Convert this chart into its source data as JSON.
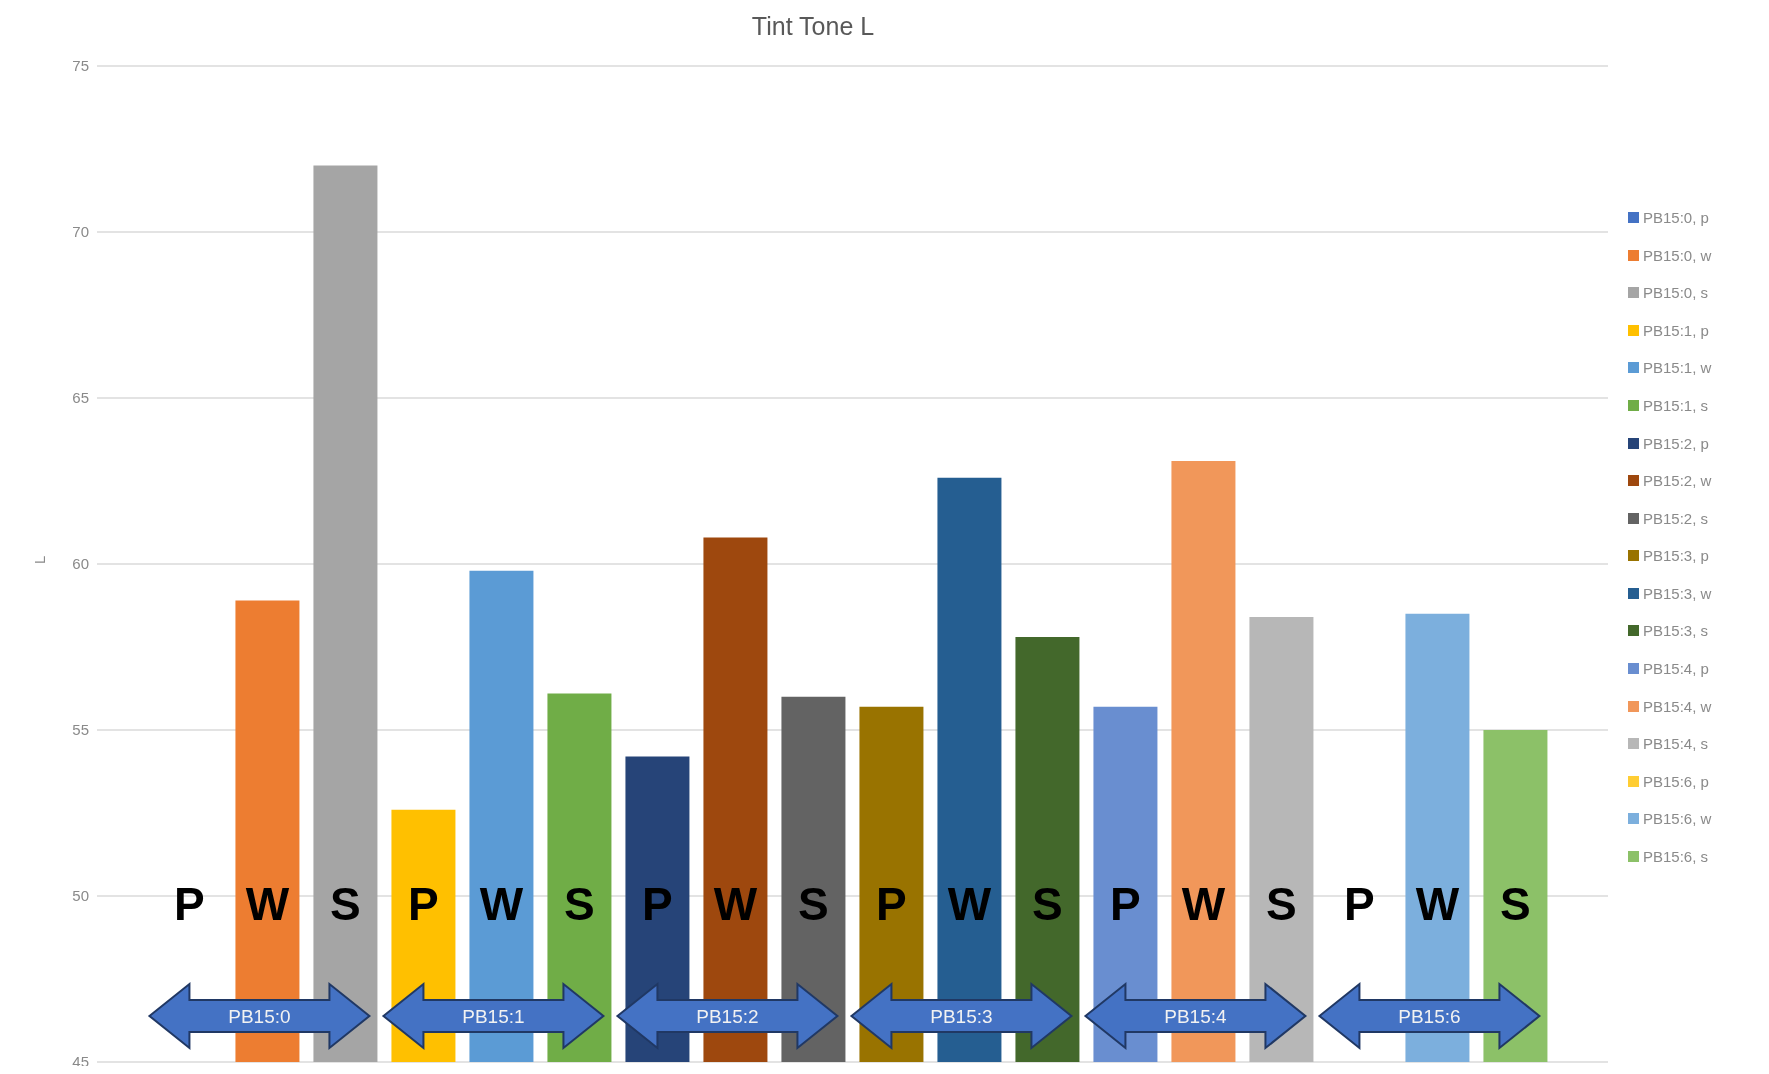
{
  "chart_data": {
    "type": "bar",
    "title": "Tint Tone L",
    "ylabel": "L",
    "categories": [
      null
    ],
    "series": [
      {
        "name": "PB15:0, p",
        "color": "#4472c4",
        "values": [
          null
        ]
      },
      {
        "name": "PB15:0, w",
        "color": "#ed7d31",
        "values": [
          58.9
        ]
      },
      {
        "name": "PB15:0, s",
        "color": "#a5a5a5",
        "values": [
          72.0
        ]
      },
      {
        "name": "PB15:1, p",
        "color": "#ffc000",
        "values": [
          52.6
        ]
      },
      {
        "name": "PB15:1, w",
        "color": "#5b9bd5",
        "values": [
          59.8
        ]
      },
      {
        "name": "PB15:1, s",
        "color": "#70ad47",
        "values": [
          56.1
        ]
      },
      {
        "name": "PB15:2, p",
        "color": "#264478",
        "values": [
          54.2
        ]
      },
      {
        "name": "PB15:2, w",
        "color": "#9e480e",
        "values": [
          60.8
        ]
      },
      {
        "name": "PB15:2, s",
        "color": "#636363",
        "values": [
          56.0
        ]
      },
      {
        "name": "PB15:3, p",
        "color": "#997300",
        "values": [
          55.7
        ]
      },
      {
        "name": "PB15:3, w",
        "color": "#255e91",
        "values": [
          62.6
        ]
      },
      {
        "name": "PB15:3, s",
        "color": "#43682b",
        "values": [
          57.8
        ]
      },
      {
        "name": "PB15:4, p",
        "color": "#698ed0",
        "values": [
          55.7
        ]
      },
      {
        "name": "PB15:4, w",
        "color": "#f1975a",
        "values": [
          63.1
        ]
      },
      {
        "name": "PB15:4, s",
        "color": "#b7b7b7",
        "values": [
          58.4
        ]
      },
      {
        "name": "PB15:6, p",
        "color": "#ffcd33",
        "values": [
          null
        ]
      },
      {
        "name": "PB15:6, w",
        "color": "#7cafdd",
        "values": [
          58.5
        ]
      },
      {
        "name": "PB15:6, s",
        "color": "#8cc168",
        "values": [
          55.0
        ]
      }
    ],
    "annotations": [
      "P",
      "W",
      "S",
      "P",
      "W",
      "S",
      "P",
      "W",
      "S",
      "P",
      "W",
      "S",
      "P",
      "W",
      "S",
      "P",
      "W",
      "S",
      "PB15:0",
      "PB15:1",
      "PB15:2",
      "PB15:3",
      "PB15:4",
      "PB15:6"
    ],
    "ylim": [
      45,
      75
    ],
    "yticks": [
      45,
      50,
      55,
      60,
      65,
      70,
      75
    ],
    "grid": "y",
    "legend": "right"
  }
}
